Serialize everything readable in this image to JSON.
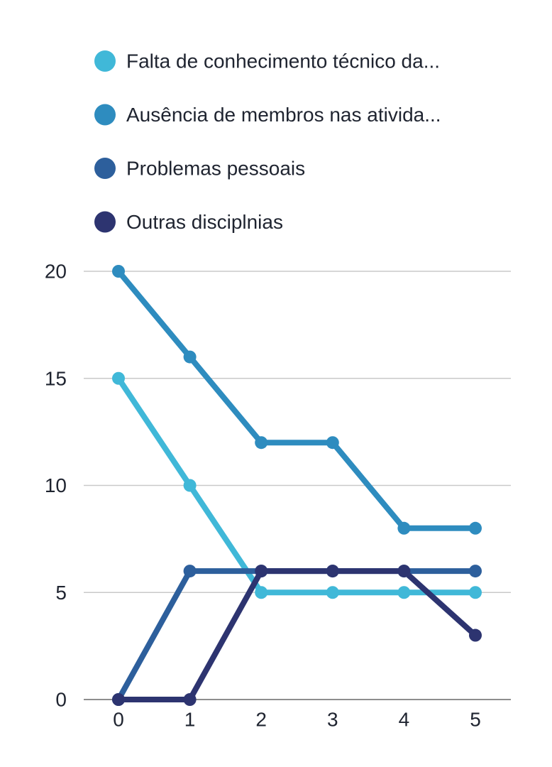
{
  "chart_data": {
    "type": "line",
    "title": "",
    "xlabel": "",
    "ylabel": "",
    "x": [
      0,
      1,
      2,
      3,
      4,
      5
    ],
    "xlim": [
      0,
      5
    ],
    "ylim": [
      0,
      20
    ],
    "yticks": [
      0,
      5,
      10,
      15,
      20
    ],
    "grid": true,
    "legend_position": "top",
    "series": [
      {
        "name": "Falta de conhecimento técnico da...",
        "color": "#40b8d8",
        "values": [
          15,
          10,
          5,
          5,
          5,
          5
        ]
      },
      {
        "name": "Ausência de membros nas ativida...",
        "color": "#2e8cbf",
        "values": [
          20,
          16,
          12,
          12,
          8,
          8
        ]
      },
      {
        "name": "Problemas pessoais",
        "color": "#2d5f9c",
        "values": [
          0,
          6,
          6,
          6,
          6,
          6
        ]
      },
      {
        "name": "Outras disciplnias",
        "color": "#2d3470",
        "values": [
          0,
          0,
          6,
          6,
          6,
          3
        ]
      }
    ]
  }
}
